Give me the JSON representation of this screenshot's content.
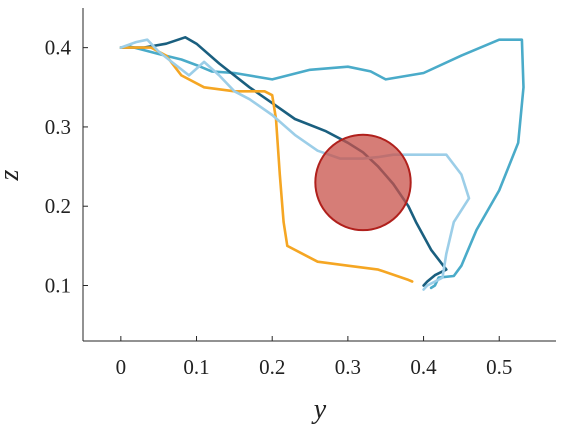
{
  "chart_data": {
    "type": "line",
    "xlabel": "y",
    "ylabel": "z",
    "xlim": [
      -0.05,
      0.575
    ],
    "ylim": [
      0.03,
      0.45
    ],
    "xticks": [
      0,
      0.1,
      0.2,
      0.3,
      0.4,
      0.5
    ],
    "xtick_labels": [
      "0",
      "0.1",
      "0.2",
      "0.3",
      "0.4",
      "0.5"
    ],
    "yticks": [
      0.1,
      0.2,
      0.3,
      0.4
    ],
    "ytick_labels": [
      "0.1",
      "0.2",
      "0.3",
      "0.4"
    ],
    "grid": false,
    "series": [
      {
        "color": "#4aabc9",
        "points": [
          [
            0.0,
            0.4
          ],
          [
            0.01,
            0.402
          ],
          [
            0.03,
            0.397
          ],
          [
            0.05,
            0.392
          ],
          [
            0.08,
            0.385
          ],
          [
            0.1,
            0.378
          ],
          [
            0.12,
            0.37
          ],
          [
            0.15,
            0.368
          ],
          [
            0.2,
            0.36
          ],
          [
            0.25,
            0.372
          ],
          [
            0.3,
            0.376
          ],
          [
            0.33,
            0.37
          ],
          [
            0.35,
            0.36
          ],
          [
            0.4,
            0.368
          ],
          [
            0.45,
            0.39
          ],
          [
            0.5,
            0.41
          ],
          [
            0.53,
            0.41
          ],
          [
            0.532,
            0.35
          ],
          [
            0.525,
            0.28
          ],
          [
            0.5,
            0.22
          ],
          [
            0.47,
            0.17
          ],
          [
            0.45,
            0.125
          ],
          [
            0.44,
            0.112
          ],
          [
            0.42,
            0.11
          ],
          [
            0.415,
            0.1
          ],
          [
            0.41,
            0.097
          ]
        ]
      },
      {
        "color": "#1a5f7f",
        "points": [
          [
            0.0,
            0.4
          ],
          [
            0.03,
            0.4
          ],
          [
            0.06,
            0.405
          ],
          [
            0.085,
            0.413
          ],
          [
            0.1,
            0.405
          ],
          [
            0.13,
            0.38
          ],
          [
            0.17,
            0.35
          ],
          [
            0.2,
            0.33
          ],
          [
            0.23,
            0.31
          ],
          [
            0.27,
            0.295
          ],
          [
            0.3,
            0.28
          ],
          [
            0.32,
            0.268
          ],
          [
            0.34,
            0.25
          ],
          [
            0.36,
            0.228
          ],
          [
            0.38,
            0.2
          ],
          [
            0.39,
            0.18
          ],
          [
            0.41,
            0.145
          ],
          [
            0.43,
            0.12
          ],
          [
            0.415,
            0.113
          ],
          [
            0.405,
            0.105
          ],
          [
            0.4,
            0.1
          ]
        ]
      },
      {
        "color": "#f5a623",
        "points": [
          [
            0.0,
            0.4
          ],
          [
            0.02,
            0.4
          ],
          [
            0.04,
            0.4
          ],
          [
            0.06,
            0.39
          ],
          [
            0.08,
            0.365
          ],
          [
            0.11,
            0.35
          ],
          [
            0.15,
            0.345
          ],
          [
            0.19,
            0.345
          ],
          [
            0.2,
            0.34
          ],
          [
            0.205,
            0.31
          ],
          [
            0.21,
            0.24
          ],
          [
            0.215,
            0.18
          ],
          [
            0.22,
            0.15
          ],
          [
            0.24,
            0.14
          ],
          [
            0.26,
            0.13
          ],
          [
            0.3,
            0.125
          ],
          [
            0.34,
            0.12
          ],
          [
            0.38,
            0.107
          ],
          [
            0.385,
            0.105
          ]
        ]
      },
      {
        "color": "#9ccee8",
        "points": [
          [
            0.0,
            0.4
          ],
          [
            0.02,
            0.407
          ],
          [
            0.035,
            0.41
          ],
          [
            0.05,
            0.395
          ],
          [
            0.07,
            0.38
          ],
          [
            0.09,
            0.365
          ],
          [
            0.11,
            0.382
          ],
          [
            0.13,
            0.365
          ],
          [
            0.15,
            0.345
          ],
          [
            0.17,
            0.335
          ],
          [
            0.2,
            0.315
          ],
          [
            0.23,
            0.29
          ],
          [
            0.26,
            0.27
          ],
          [
            0.29,
            0.26
          ],
          [
            0.32,
            0.26
          ],
          [
            0.34,
            0.262
          ],
          [
            0.36,
            0.265
          ],
          [
            0.4,
            0.265
          ],
          [
            0.43,
            0.265
          ],
          [
            0.45,
            0.24
          ],
          [
            0.46,
            0.21
          ],
          [
            0.44,
            0.18
          ],
          [
            0.43,
            0.14
          ],
          [
            0.425,
            0.11
          ],
          [
            0.405,
            0.1
          ],
          [
            0.4,
            0.095
          ]
        ]
      }
    ],
    "circle": {
      "center": [
        0.32,
        0.23
      ],
      "radius_x": 0.063,
      "fill": "#c8524a",
      "fill_opacity": 0.75,
      "stroke": "#b0201c"
    }
  }
}
